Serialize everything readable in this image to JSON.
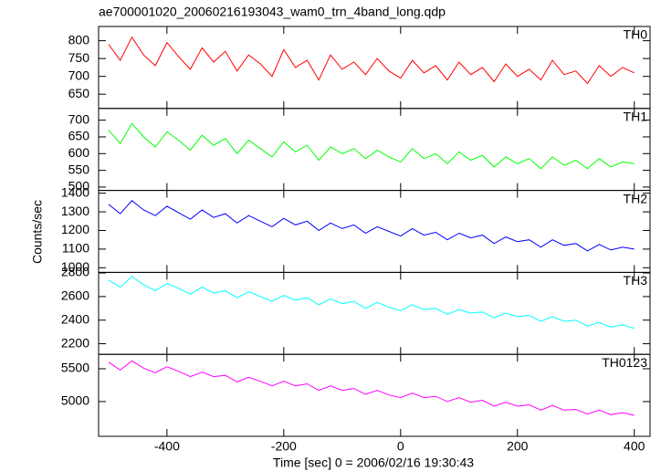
{
  "chart_data": {
    "type": "line",
    "title": "ae700001020_20060216193043_wam0_trn_4band_long.qdp",
    "xlabel": "Time [sec] 0 = 2006/02/16 19:30:43",
    "ylabel": "Counts/sec",
    "xlim": [
      -517,
      427
    ],
    "xticks": [
      -400,
      -200,
      0,
      200,
      400
    ],
    "x": [
      -500,
      -480,
      -460,
      -440,
      -420,
      -400,
      -380,
      -360,
      -340,
      -320,
      -300,
      -280,
      -260,
      -240,
      -220,
      -200,
      -180,
      -160,
      -140,
      -120,
      -100,
      -80,
      -60,
      -40,
      -20,
      0,
      20,
      40,
      60,
      80,
      100,
      120,
      140,
      160,
      180,
      200,
      220,
      240,
      260,
      280,
      300,
      320,
      340,
      360,
      380,
      400
    ],
    "series": [
      {
        "name": "TH0",
        "color": "#ff0000",
        "ylim": [
          610,
          840
        ],
        "yticks": [
          650,
          700,
          750,
          800
        ],
        "values": [
          790,
          745,
          810,
          760,
          730,
          795,
          755,
          720,
          780,
          740,
          770,
          715,
          760,
          735,
          700,
          775,
          725,
          745,
          690,
          760,
          720,
          740,
          705,
          750,
          715,
          695,
          745,
          710,
          730,
          690,
          740,
          705,
          725,
          685,
          735,
          700,
          720,
          690,
          745,
          705,
          715,
          680,
          730,
          700,
          725,
          710
        ]
      },
      {
        "name": "TH1",
        "color": "#00ff00",
        "ylim": [
          490,
          735
        ],
        "yticks": [
          500,
          550,
          600,
          650,
          700
        ],
        "values": [
          670,
          630,
          690,
          650,
          620,
          665,
          640,
          610,
          655,
          625,
          645,
          600,
          640,
          615,
          590,
          635,
          605,
          625,
          580,
          620,
          600,
          615,
          585,
          610,
          590,
          575,
          615,
          585,
          600,
          570,
          605,
          580,
          595,
          560,
          590,
          570,
          585,
          555,
          590,
          565,
          580,
          555,
          585,
          560,
          575,
          570
        ]
      },
      {
        "name": "TH2",
        "color": "#0000ff",
        "ylim": [
          975,
          1415
        ],
        "yticks": [
          1000,
          1100,
          1200,
          1300,
          1400
        ],
        "values": [
          1340,
          1290,
          1360,
          1310,
          1280,
          1330,
          1295,
          1260,
          1310,
          1270,
          1290,
          1240,
          1280,
          1250,
          1220,
          1265,
          1230,
          1250,
          1200,
          1240,
          1210,
          1230,
          1185,
          1220,
          1195,
          1170,
          1210,
          1175,
          1190,
          1150,
          1185,
          1160,
          1175,
          1130,
          1165,
          1140,
          1150,
          1110,
          1150,
          1120,
          1130,
          1090,
          1125,
          1095,
          1110,
          1100
        ]
      },
      {
        "name": "TH3",
        "color": "#00ffff",
        "ylim": [
          2110,
          2805
        ],
        "yticks": [
          2200,
          2400,
          2600,
          2800
        ],
        "values": [
          2740,
          2680,
          2770,
          2700,
          2650,
          2710,
          2670,
          2620,
          2680,
          2630,
          2650,
          2590,
          2640,
          2600,
          2560,
          2610,
          2570,
          2590,
          2530,
          2580,
          2540,
          2560,
          2500,
          2550,
          2510,
          2480,
          2530,
          2490,
          2500,
          2450,
          2490,
          2460,
          2470,
          2420,
          2460,
          2430,
          2440,
          2390,
          2430,
          2390,
          2400,
          2350,
          2380,
          2340,
          2360,
          2330
        ]
      },
      {
        "name": "TH0123",
        "color": "#ff00ff",
        "ylim": [
          4470,
          5720
        ],
        "yticks": [
          5000,
          5500
        ],
        "values": [
          5600,
          5480,
          5620,
          5510,
          5440,
          5530,
          5460,
          5380,
          5450,
          5380,
          5400,
          5300,
          5370,
          5310,
          5240,
          5310,
          5240,
          5270,
          5170,
          5240,
          5170,
          5200,
          5110,
          5170,
          5100,
          5060,
          5130,
          5060,
          5080,
          5000,
          5060,
          4990,
          5020,
          4930,
          4990,
          4930,
          4950,
          4870,
          4940,
          4870,
          4880,
          4810,
          4870,
          4800,
          4830,
          4790
        ]
      }
    ]
  }
}
